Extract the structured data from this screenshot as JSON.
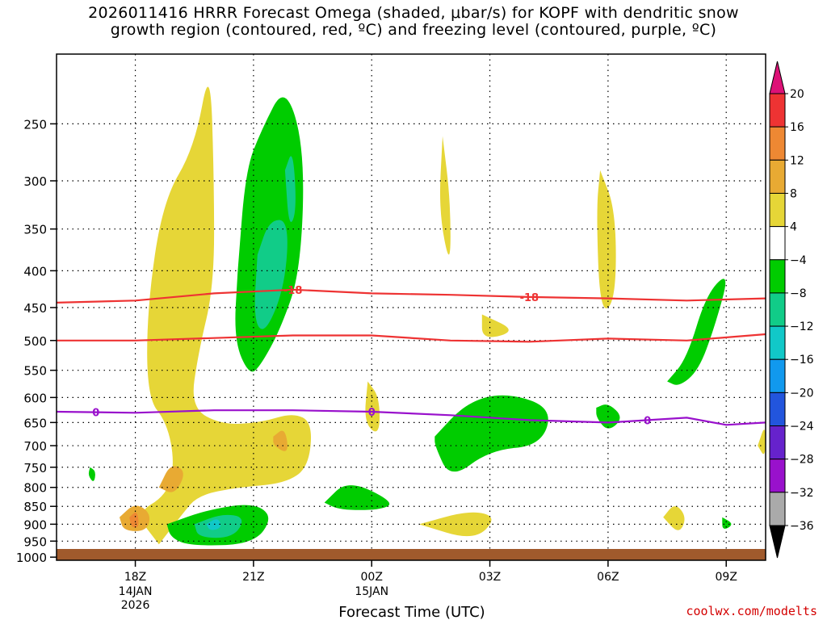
{
  "title_line1": "2026011416 HRRR Forecast Omega (shaded, μbar/s) for KOPF with dendritic snow",
  "title_line2": "growth region (contoured, red, ºC) and freezing level (contoured, purple, ºC)",
  "watermark": "coolwx.com/modelts",
  "chart_data": {
    "type": "heatmap",
    "xlabel": "Forecast Time (UTC)",
    "ylabel": "",
    "x_ticks": [
      {
        "t": 2,
        "label": "18Z",
        "sub1": "14JAN",
        "sub2": "2026"
      },
      {
        "t": 5,
        "label": "21Z",
        "sub1": "",
        "sub2": ""
      },
      {
        "t": 8,
        "label": "00Z",
        "sub1": "15JAN",
        "sub2": ""
      },
      {
        "t": 11,
        "label": "03Z",
        "sub1": "",
        "sub2": ""
      },
      {
        "t": 14,
        "label": "06Z",
        "sub1": "",
        "sub2": ""
      },
      {
        "t": 17,
        "label": "09Z",
        "sub1": "",
        "sub2": ""
      }
    ],
    "xlim": [
      0,
      18
    ],
    "y_ticks": [
      250,
      300,
      350,
      400,
      450,
      500,
      550,
      600,
      650,
      700,
      750,
      800,
      850,
      900,
      950,
      1000
    ],
    "ylim_hpa": [
      200,
      1010
    ],
    "y_scale": "log",
    "grid": true,
    "colorbar": {
      "labels": [
        "20",
        "16",
        "12",
        "8",
        "4",
        "−4",
        "−8",
        "−12",
        "−16",
        "−20",
        "−24",
        "−28",
        "−32",
        "−36"
      ],
      "colors": [
        "#dd1177",
        "#ee3333",
        "#ee8833",
        "#e8aa33",
        "#e6d637",
        "#ffffff",
        "#00cc00",
        "#11cc88",
        "#11c8c8",
        "#1199ee",
        "#2255dd",
        "#6622cc",
        "#9911cc",
        "#aaaaaa",
        "#000000"
      ]
    },
    "omega_regions": [
      {
        "level": 4,
        "color": "#e6d637",
        "pts": [
          [
            2.6,
            960
          ],
          [
            2.0,
            870
          ],
          [
            2.8,
            820
          ],
          [
            3.0,
            740
          ],
          [
            2.8,
            650
          ],
          [
            2.3,
            600
          ],
          [
            2.3,
            450
          ],
          [
            2.7,
            320
          ],
          [
            3.5,
            270
          ],
          [
            3.9,
            205
          ],
          [
            4.0,
            300
          ],
          [
            4.0,
            420
          ],
          [
            3.6,
            520
          ],
          [
            3.4,
            620
          ],
          [
            4.2,
            655
          ],
          [
            5.2,
            650
          ],
          [
            6.0,
            630
          ],
          [
            6.5,
            650
          ],
          [
            6.4,
            750
          ],
          [
            5.8,
            790
          ],
          [
            4.6,
            800
          ],
          [
            3.6,
            820
          ],
          [
            3.2,
            870
          ],
          [
            2.6,
            960
          ]
        ]
      },
      {
        "level": 4,
        "color": "#e6d637",
        "pts": [
          [
            9.8,
            260
          ],
          [
            10.0,
            320
          ],
          [
            10.0,
            400
          ],
          [
            9.7,
            330
          ],
          [
            9.8,
            260
          ]
        ]
      },
      {
        "level": 4,
        "color": "#e6d637",
        "pts": [
          [
            13.8,
            290
          ],
          [
            14.2,
            330
          ],
          [
            14.2,
            440
          ],
          [
            13.8,
            460
          ],
          [
            13.7,
            330
          ],
          [
            13.8,
            290
          ]
        ]
      },
      {
        "level": 4,
        "color": "#e6d637",
        "pts": [
          [
            10.8,
            460
          ],
          [
            11.7,
            485
          ],
          [
            10.8,
            500
          ],
          [
            10.8,
            460
          ]
        ]
      },
      {
        "level": 4,
        "color": "#e6d637",
        "pts": [
          [
            7.9,
            570
          ],
          [
            8.2,
            600
          ],
          [
            8.2,
            680
          ],
          [
            7.8,
            650
          ],
          [
            7.9,
            570
          ]
        ]
      },
      {
        "level": 4,
        "color": "#e6d637",
        "pts": [
          [
            9.2,
            900
          ],
          [
            10.5,
            860
          ],
          [
            11.2,
            880
          ],
          [
            10.6,
            950
          ],
          [
            9.2,
            900
          ]
        ]
      },
      {
        "level": 4,
        "color": "#e6d637",
        "pts": [
          [
            15.4,
            880
          ],
          [
            15.7,
            840
          ],
          [
            16.0,
            880
          ],
          [
            15.8,
            930
          ],
          [
            15.4,
            880
          ]
        ]
      },
      {
        "level": 4,
        "color": "#e6d637",
        "pts": [
          [
            17.8,
            700
          ],
          [
            18.0,
            650
          ],
          [
            18.0,
            730
          ],
          [
            17.8,
            700
          ]
        ]
      },
      {
        "level": 8,
        "color": "#e8aa33",
        "pts": [
          [
            2.6,
            800
          ],
          [
            2.9,
            740
          ],
          [
            3.3,
            760
          ],
          [
            3.0,
            820
          ],
          [
            2.6,
            800
          ]
        ]
      },
      {
        "level": 8,
        "color": "#e8aa33",
        "pts": [
          [
            1.6,
            880
          ],
          [
            2.0,
            840
          ],
          [
            2.4,
            870
          ],
          [
            2.3,
            920
          ],
          [
            1.7,
            920
          ],
          [
            1.6,
            880
          ]
        ]
      },
      {
        "level": 8,
        "color": "#e8aa33",
        "pts": [
          [
            5.5,
            680
          ],
          [
            5.8,
            660
          ],
          [
            5.9,
            720
          ],
          [
            5.5,
            700
          ],
          [
            5.5,
            680
          ]
        ]
      },
      {
        "level": 12,
        "color": "#ee8833",
        "pts": [
          [
            1.85,
            880
          ],
          [
            2.05,
            860
          ],
          [
            2.1,
            910
          ],
          [
            1.9,
            910
          ],
          [
            1.85,
            880
          ]
        ]
      },
      {
        "level": -4,
        "color": "#00cc00",
        "pts": [
          [
            4.6,
            400
          ],
          [
            4.8,
            290
          ],
          [
            5.2,
            255
          ],
          [
            5.8,
            220
          ],
          [
            6.3,
            270
          ],
          [
            6.2,
            400
          ],
          [
            5.7,
            480
          ],
          [
            5.2,
            540
          ],
          [
            4.9,
            560
          ],
          [
            4.5,
            500
          ],
          [
            4.6,
            400
          ]
        ]
      },
      {
        "level": -4,
        "color": "#00cc00",
        "pts": [
          [
            9.6,
            680
          ],
          [
            10.4,
            610
          ],
          [
            11.4,
            590
          ],
          [
            12.6,
            620
          ],
          [
            12.3,
            700
          ],
          [
            11.0,
            710
          ],
          [
            10.0,
            780
          ],
          [
            9.6,
            700
          ],
          [
            9.6,
            680
          ]
        ]
      },
      {
        "level": -4,
        "color": "#00cc00",
        "pts": [
          [
            6.8,
            840
          ],
          [
            7.4,
            780
          ],
          [
            8.6,
            840
          ],
          [
            8.2,
            860
          ],
          [
            7.2,
            860
          ],
          [
            6.8,
            840
          ]
        ]
      },
      {
        "level": -4,
        "color": "#00cc00",
        "pts": [
          [
            2.8,
            900
          ],
          [
            3.8,
            860
          ],
          [
            5.0,
            840
          ],
          [
            5.5,
            880
          ],
          [
            5.0,
            960
          ],
          [
            3.4,
            965
          ],
          [
            2.9,
            940
          ],
          [
            2.8,
            900
          ]
        ]
      },
      {
        "level": -4,
        "color": "#00cc00",
        "pts": [
          [
            15.5,
            570
          ],
          [
            16.0,
            530
          ],
          [
            16.5,
            430
          ],
          [
            17.1,
            400
          ],
          [
            16.7,
            480
          ],
          [
            16.3,
            550
          ],
          [
            15.8,
            580
          ],
          [
            15.5,
            570
          ]
        ]
      },
      {
        "level": -4,
        "color": "#00cc00",
        "pts": [
          [
            13.7,
            620
          ],
          [
            14.0,
            610
          ],
          [
            14.4,
            640
          ],
          [
            14.0,
            670
          ],
          [
            13.7,
            640
          ],
          [
            13.7,
            620
          ]
        ]
      },
      {
        "level": -4,
        "color": "#00cc00",
        "pts": [
          [
            0.85,
            750
          ],
          [
            1.0,
            760
          ],
          [
            0.95,
            790
          ],
          [
            0.8,
            770
          ],
          [
            0.85,
            750
          ]
        ]
      },
      {
        "level": -4,
        "color": "#00cc00",
        "pts": [
          [
            16.9,
            880
          ],
          [
            17.2,
            900
          ],
          [
            16.9,
            920
          ],
          [
            16.9,
            880
          ]
        ]
      },
      {
        "level": -8,
        "color": "#11cc88",
        "pts": [
          [
            5.1,
            380
          ],
          [
            5.4,
            340
          ],
          [
            5.9,
            340
          ],
          [
            5.8,
            420
          ],
          [
            5.3,
            490
          ],
          [
            5.0,
            470
          ],
          [
            5.1,
            380
          ]
        ]
      },
      {
        "level": -8,
        "color": "#11cc88",
        "pts": [
          [
            5.8,
            290
          ],
          [
            6.0,
            270
          ],
          [
            6.1,
            330
          ],
          [
            5.9,
            350
          ],
          [
            5.8,
            290
          ]
        ]
      },
      {
        "level": -8,
        "color": "#11cc88",
        "pts": [
          [
            3.5,
            900
          ],
          [
            4.2,
            870
          ],
          [
            4.8,
            880
          ],
          [
            4.5,
            940
          ],
          [
            3.6,
            940
          ],
          [
            3.5,
            900
          ]
        ]
      },
      {
        "level": -12,
        "color": "#11c8c8",
        "pts": [
          [
            3.8,
            900
          ],
          [
            4.1,
            880
          ],
          [
            4.2,
            910
          ],
          [
            3.9,
            920
          ],
          [
            3.8,
            900
          ]
        ]
      }
    ],
    "contours": [
      {
        "name": "-18",
        "color": "#ee3333",
        "label_x": [
          6.0,
          12.0
        ],
        "pts": [
          [
            0,
            443
          ],
          [
            2,
            440
          ],
          [
            4,
            430
          ],
          [
            6,
            425
          ],
          [
            8,
            430
          ],
          [
            10,
            432
          ],
          [
            12,
            435
          ],
          [
            14,
            437
          ],
          [
            16,
            440
          ],
          [
            18,
            437
          ]
        ]
      },
      {
        "name": "",
        "color": "#ee3333",
        "label_x": [],
        "pts": [
          [
            0,
            500
          ],
          [
            2,
            500
          ],
          [
            4,
            496
          ],
          [
            6,
            492
          ],
          [
            8,
            492
          ],
          [
            10,
            500
          ],
          [
            12,
            502
          ],
          [
            14,
            497
          ],
          [
            16,
            500
          ],
          [
            18,
            490
          ]
        ]
      },
      {
        "name": "0",
        "color": "#9911cc",
        "label_x": [
          1.0,
          8.0,
          15.0
        ],
        "pts": [
          [
            0,
            628
          ],
          [
            2,
            630
          ],
          [
            4,
            625
          ],
          [
            6,
            625
          ],
          [
            8,
            628
          ],
          [
            10,
            635
          ],
          [
            12,
            645
          ],
          [
            14,
            650
          ],
          [
            16,
            640
          ],
          [
            17,
            655
          ],
          [
            18,
            650
          ]
        ]
      }
    ]
  }
}
